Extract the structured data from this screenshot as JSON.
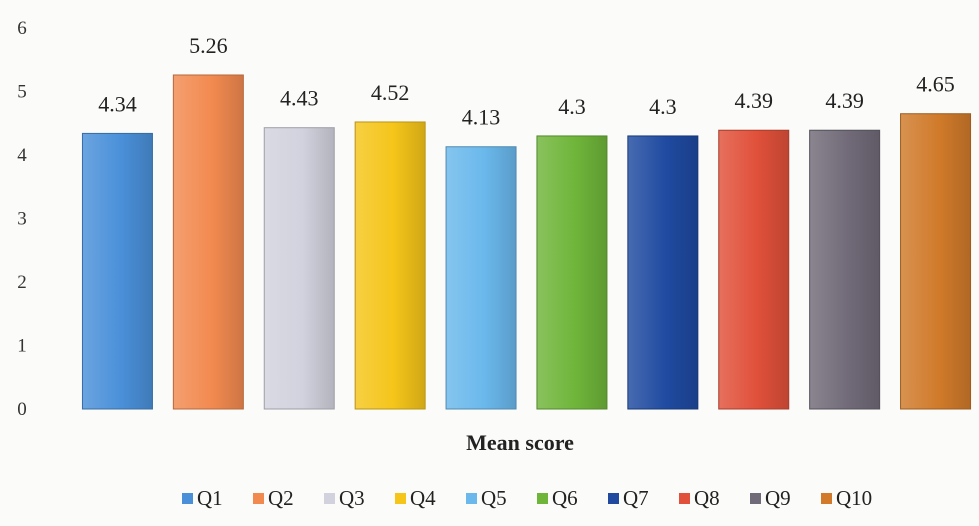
{
  "chart_data": {
    "type": "bar",
    "title": "",
    "xlabel": "Mean score",
    "ylabel": "",
    "ylim": [
      0,
      6
    ],
    "yticks": [
      0,
      1,
      2,
      3,
      4,
      5,
      6
    ],
    "grid": false,
    "legend_position": "bottom",
    "categories": [
      "Q1",
      "Q2",
      "Q3",
      "Q4",
      "Q5",
      "Q6",
      "Q7",
      "Q8",
      "Q9",
      "Q10"
    ],
    "values": [
      4.34,
      5.26,
      4.43,
      4.52,
      4.13,
      4.3,
      4.3,
      4.39,
      4.39,
      4.65
    ],
    "value_labels": [
      "4.34",
      "5.26",
      "4.43",
      "4.52",
      "4.13",
      "4.3",
      "4.3",
      "4.39",
      "4.39",
      "4.65"
    ],
    "colors": [
      "#4a90d9",
      "#f28a50",
      "#d2d2de",
      "#f5c51a",
      "#6ab8ec",
      "#6fb53a",
      "#1f4aa0",
      "#e0503a",
      "#716a78",
      "#d07a2a"
    ]
  }
}
